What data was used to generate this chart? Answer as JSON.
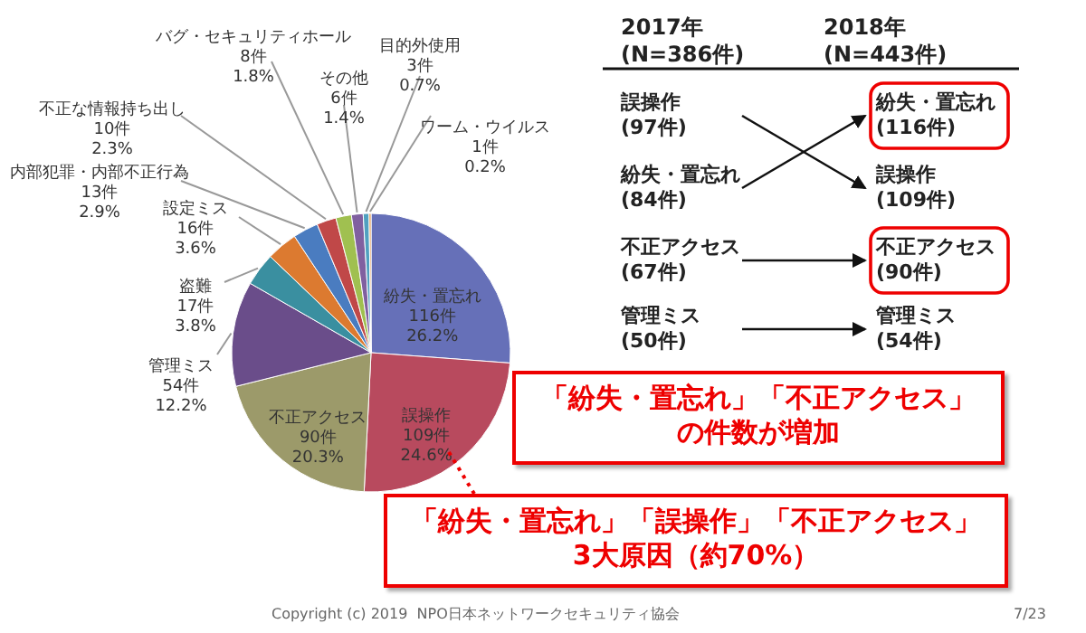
{
  "chart_data": [
    {
      "type": "pie",
      "categories": [
        "紛失・置忘れ",
        "誤操作",
        "不正アクセス",
        "管理ミス",
        "盗難",
        "設定ミス",
        "内部犯罪・内部不正行為",
        "不正な情報持ち出し",
        "バグ・セキュリティホール",
        "その他",
        "目的外使用",
        "ワーム・ウイルス"
      ],
      "values": [
        116,
        109,
        90,
        54,
        17,
        16,
        13,
        10,
        8,
        6,
        3,
        1
      ],
      "colors": [
        "#6670b8",
        "#b84a5e",
        "#9c9a6a",
        "#6a4d8a",
        "#3a8fa0",
        "#dc7a30",
        "#4a7cc0",
        "#c04848",
        "#a0c050",
        "#8060a0",
        "#50a0c0",
        "#e09040"
      ],
      "value_labels": [
        "116件\n26.2%",
        "109件\n24.6%",
        "90件\n20.3%",
        "54件\n12.2%",
        "17件\n3.8%",
        "16件\n3.6%",
        "13件\n2.9%",
        "10件\n2.3%",
        "8件\n1.8%",
        "6件\n1.4%",
        "3件\n0.7%",
        "1件\n0.2%"
      ]
    },
    {
      "type": "other",
      "annotations": [
        "2017年\n(N=386件)",
        "2018年\n(N=443件)",
        "誤操作\n(97件)",
        "紛失・置忘れ\n(84件)",
        "不正アクセス\n(67件)",
        "管理ミス\n(50件)",
        "紛失・置忘れ\n(116件)",
        "誤操作\n(109件)",
        "不正アクセス\n(90件)",
        "管理ミス\n(54件)",
        "「紛失・置忘れ」「不正アクセス」",
        "の件数が増加",
        "「紛失・置忘れ」「誤操作」「不正アクセス」",
        "3大原因（約70%）",
        "Copyright (c) 2019  NPO日本ネットワークセキュリティ協会",
        "7/23"
      ]
    }
  ]
}
